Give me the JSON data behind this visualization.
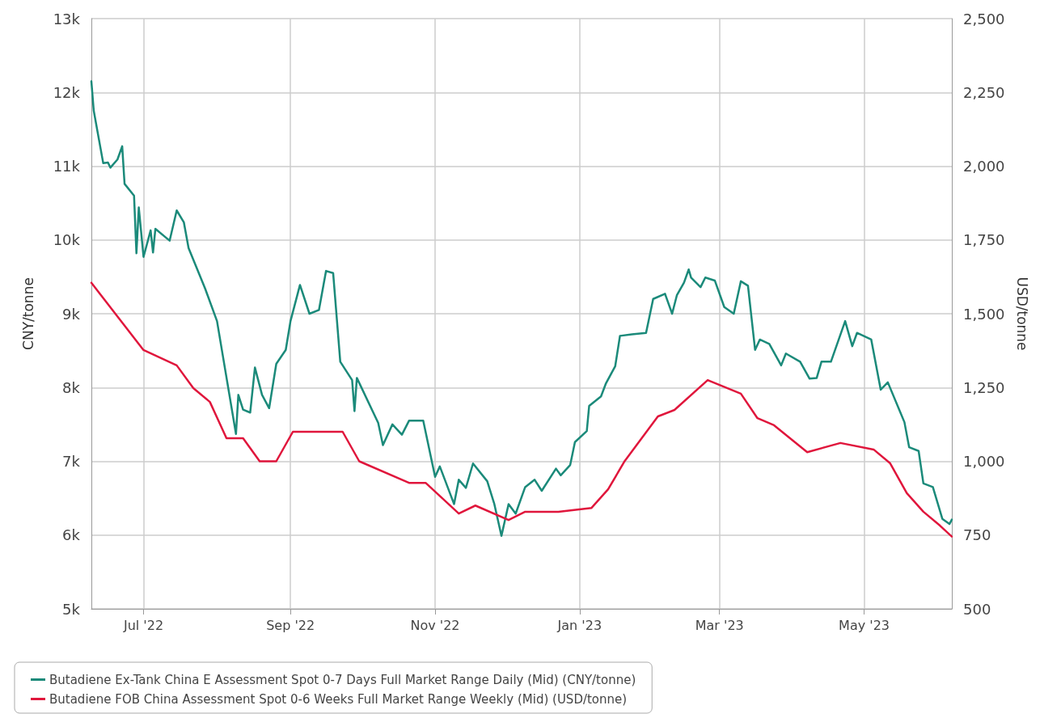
{
  "chart_data": {
    "type": "line",
    "ylabel": "CNY/tonne",
    "y2label": "USD/tonne",
    "xlim": [
      "2022-06-09",
      "2023-06-07"
    ],
    "xticks": [
      {
        "value": "2022-07-01",
        "label": "Jul '22"
      },
      {
        "value": "2022-09-01",
        "label": "Sep '22"
      },
      {
        "value": "2022-11-01",
        "label": "Nov '22"
      },
      {
        "value": "2023-01-01",
        "label": "Jan '23"
      },
      {
        "value": "2023-03-01",
        "label": "Mar '23"
      },
      {
        "value": "2023-05-01",
        "label": "May '23"
      }
    ],
    "ylim": [
      5000,
      13000
    ],
    "yticks": [
      {
        "value": 5000,
        "label": "5k"
      },
      {
        "value": 6000,
        "label": "6k"
      },
      {
        "value": 7000,
        "label": "7k"
      },
      {
        "value": 8000,
        "label": "8k"
      },
      {
        "value": 9000,
        "label": "9k"
      },
      {
        "value": 10000,
        "label": "10k"
      },
      {
        "value": 11000,
        "label": "11k"
      },
      {
        "value": 12000,
        "label": "12k"
      },
      {
        "value": 13000,
        "label": "13k"
      }
    ],
    "y2lim": [
      500,
      2500
    ],
    "y2ticks": [
      500,
      750,
      {
        "value": 1000,
        "label": "1,000"
      },
      {
        "value": 1250,
        "label": "1,250"
      },
      {
        "value": 1500,
        "label": "1,500"
      },
      {
        "value": 1750,
        "label": "1,750"
      },
      {
        "value": 2000,
        "label": "2,000"
      },
      {
        "value": 2250,
        "label": "2,250"
      },
      {
        "value": 2500,
        "label": "2,500"
      }
    ],
    "grid": true,
    "legend": "bottom",
    "marker": "none",
    "line_style": "solid",
    "series": [
      {
        "name": "Butadiene Ex-Tank China E Assessment Spot 0-7 Days Full Market Range Daily (Mid) (CNY/tonne)",
        "color": "#1b8a7a",
        "x": [
          "2022-06-09",
          "2022-06-10",
          "2022-06-14",
          "2022-06-16",
          "2022-06-17",
          "2022-06-20",
          "2022-06-22",
          "2022-06-23",
          "2022-06-27",
          "2022-06-28",
          "2022-06-29",
          "2022-07-01",
          "2022-07-04",
          "2022-07-05",
          "2022-07-06",
          "2022-07-12",
          "2022-07-15",
          "2022-07-18",
          "2022-07-20",
          "2022-07-27",
          "2022-08-01",
          "2022-08-09",
          "2022-08-10",
          "2022-08-12",
          "2022-08-15",
          "2022-08-17",
          "2022-08-20",
          "2022-08-23",
          "2022-08-26",
          "2022-08-30",
          "2022-09-01",
          "2022-09-05",
          "2022-09-09",
          "2022-09-13",
          "2022-09-16",
          "2022-09-19",
          "2022-09-22",
          "2022-09-27",
          "2022-09-28",
          "2022-09-29",
          "2022-10-08",
          "2022-10-10",
          "2022-10-14",
          "2022-10-18",
          "2022-10-21",
          "2022-10-27",
          "2022-11-01",
          "2022-11-03",
          "2022-11-09",
          "2022-11-11",
          "2022-11-14",
          "2022-11-17",
          "2022-11-23",
          "2022-11-26",
          "2022-11-29",
          "2022-12-02",
          "2022-12-05",
          "2022-12-09",
          "2022-12-13",
          "2022-12-16",
          "2022-12-22",
          "2022-12-24",
          "2022-12-28",
          "2022-12-30",
          "2023-01-04",
          "2023-01-05",
          "2023-01-10",
          "2023-01-12",
          "2023-01-16",
          "2023-01-18",
          "2023-01-23",
          "2023-01-29",
          "2023-02-01",
          "2023-02-06",
          "2023-02-09",
          "2023-02-11",
          "2023-02-14",
          "2023-02-16",
          "2023-02-17",
          "2023-02-21",
          "2023-02-23",
          "2023-02-27",
          "2023-03-03",
          "2023-03-07",
          "2023-03-10",
          "2023-03-13",
          "2023-03-16",
          "2023-03-18",
          "2023-03-22",
          "2023-03-27",
          "2023-03-29",
          "2023-04-04",
          "2023-04-08",
          "2023-04-11",
          "2023-04-13",
          "2023-04-17",
          "2023-04-23",
          "2023-04-26",
          "2023-04-28",
          "2023-05-04",
          "2023-05-08",
          "2023-05-11",
          "2023-05-18",
          "2023-05-20",
          "2023-05-24",
          "2023-05-26",
          "2023-05-30",
          "2023-06-03",
          "2023-06-06",
          "2023-06-07"
        ],
        "values": [
          12150,
          11750,
          11040,
          11050,
          10980,
          11090,
          11270,
          10760,
          10600,
          9820,
          10440,
          9770,
          10130,
          9830,
          10150,
          9990,
          10400,
          10240,
          9890,
          9340,
          8900,
          7370,
          7900,
          7700,
          7660,
          8270,
          7900,
          7720,
          8320,
          8510,
          8900,
          9390,
          9000,
          9050,
          9580,
          9550,
          8350,
          8100,
          7680,
          8130,
          7520,
          7220,
          7500,
          7360,
          7550,
          7550,
          6790,
          6930,
          6420,
          6750,
          6640,
          6970,
          6730,
          6420,
          5990,
          6420,
          6290,
          6650,
          6750,
          6600,
          6900,
          6810,
          6950,
          7260,
          7410,
          7750,
          7880,
          8050,
          8290,
          8700,
          8720,
          8740,
          9200,
          9270,
          9000,
          9250,
          9420,
          9600,
          9490,
          9360,
          9490,
          9450,
          9090,
          9000,
          9440,
          9380,
          8510,
          8650,
          8590,
          8300,
          8460,
          8350,
          8120,
          8130,
          8350,
          8350,
          8900,
          8560,
          8740,
          8650,
          7970,
          8070,
          7530,
          7190,
          7140,
          6700,
          6650,
          6220,
          6150,
          6210
        ]
      },
      {
        "name": "Butadiene FOB China Assessment Spot 0-6 Weeks Full Market Range Weekly (Mid) (USD/tonne)",
        "color": "#e0163c",
        "axis": "y2",
        "x": [
          "2022-06-09",
          "2022-07-01",
          "2022-07-15",
          "2022-07-22",
          "2022-07-29",
          "2022-08-05",
          "2022-08-12",
          "2022-08-19",
          "2022-08-26",
          "2022-09-02",
          "2022-09-23",
          "2022-09-30",
          "2022-10-21",
          "2022-10-28",
          "2022-11-11",
          "2022-11-18",
          "2022-12-02",
          "2022-12-09",
          "2022-12-23",
          "2023-01-06",
          "2023-01-13",
          "2023-01-20",
          "2023-02-03",
          "2023-02-10",
          "2023-02-24",
          "2023-03-10",
          "2023-03-17",
          "2023-03-24",
          "2023-04-07",
          "2023-04-21",
          "2023-05-05",
          "2023-05-12",
          "2023-05-19",
          "2023-05-26",
          "2023-06-02",
          "2023-06-07"
        ],
        "values": [
          1605,
          1377,
          1325,
          1248,
          1201,
          1078,
          1078,
          1000,
          1000,
          1100,
          1100,
          1000,
          927,
          927,
          823,
          850,
          801,
          829,
          829,
          842,
          905,
          1001,
          1152,
          1174,
          1275,
          1229,
          1146,
          1122,
          1031,
          1062,
          1040,
          993,
          892,
          829,
          782,
          745
        ]
      }
    ]
  }
}
